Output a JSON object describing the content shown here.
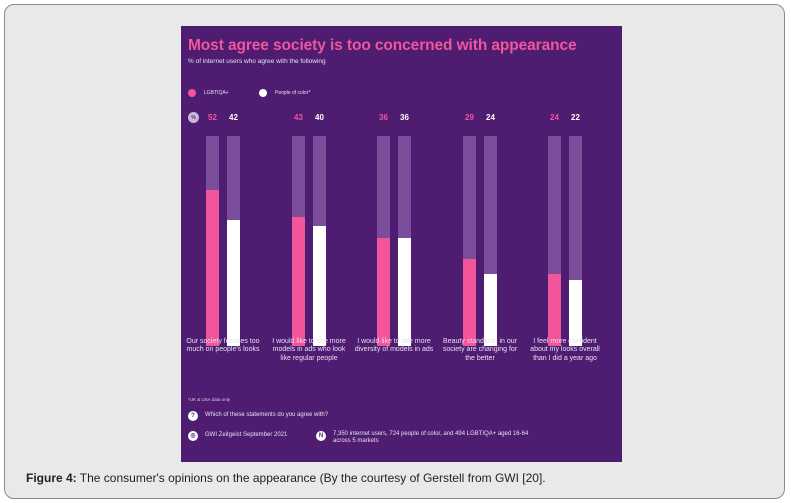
{
  "chart_data": {
    "type": "bar",
    "title": "Most agree society is too concerned with appearance",
    "subtitle": "% of internet users who agree with the following",
    "ylim": [
      0,
      70
    ],
    "categories": [
      "Our society focuses too much on people's looks",
      "I would like to see more models in ads who look like regular people",
      "I would like to see more diversity of models in ads",
      "Beauty standards in our society are changing for the better",
      "I feel more confident about my looks overall than I did a year ago"
    ],
    "series": [
      {
        "name": "LGBTIQA+",
        "color": "#f2559a",
        "values": [
          52,
          43,
          36,
          29,
          24
        ]
      },
      {
        "name": "People of color*",
        "color": "#ffffff",
        "values": [
          42,
          40,
          36,
          24,
          22
        ]
      }
    ],
    "percent_icon": "%"
  },
  "footer": {
    "note": "*UK & USA data only",
    "question": "Which of these statements do you agree with?",
    "question_icon": "question-icon",
    "source": "GWI Zeitgeist September 2021",
    "source_icon": "gwi-logo-icon",
    "sample": "7,350 internet users, 724 people of color, and 494 LGBTIQA+ aged 16-64 across 5 markets",
    "sample_icon": "sample-icon"
  },
  "caption": {
    "label": "Figure 4:",
    "text": " The consumer's opinions on the appearance (By the courtesy of Gerstell from GWI [20]."
  }
}
